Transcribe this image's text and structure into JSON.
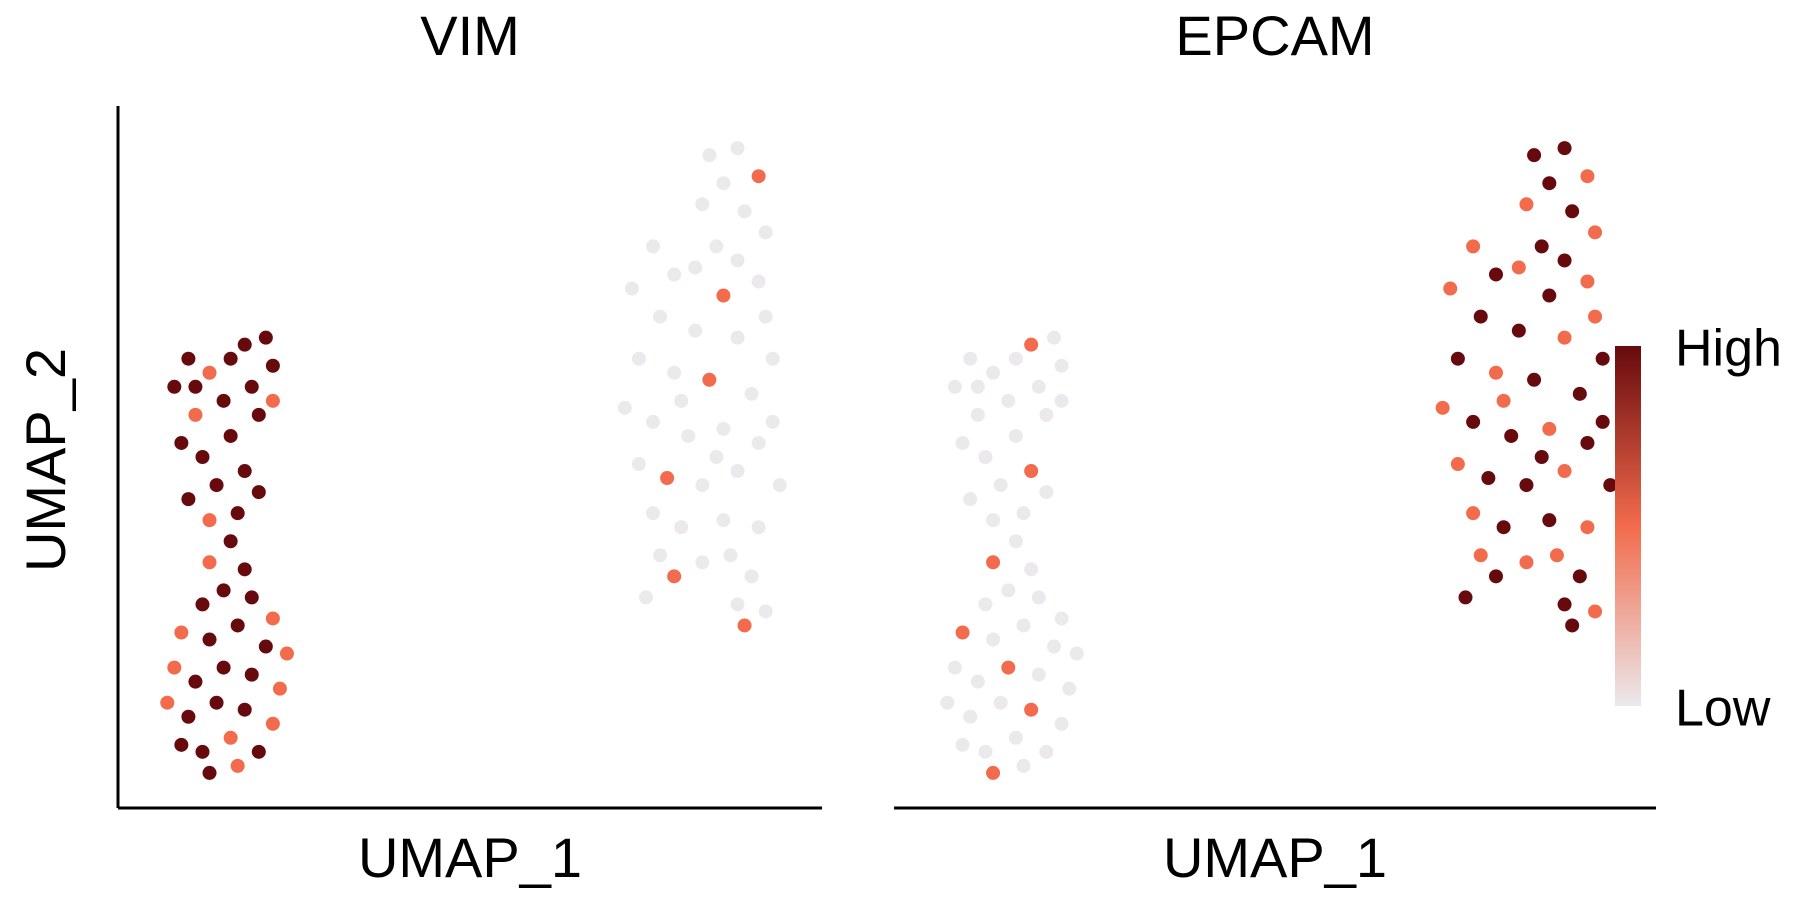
{
  "chart_data": [
    {
      "type": "scatter",
      "title": "VIM",
      "xlabel": "UMAP_1",
      "ylabel": "UMAP_2",
      "xlim": [
        0,
        100
      ],
      "ylim": [
        0,
        100
      ],
      "clim": [
        0,
        2
      ],
      "color_scale": [
        "#ebe9ec",
        "#f26b4c",
        "#670a0d"
      ],
      "x": [
        8,
        10,
        13,
        18,
        21,
        22,
        19,
        15,
        11,
        9,
        12,
        16,
        20,
        22,
        18,
        14,
        10,
        13,
        17,
        20,
        16,
        13,
        18,
        15,
        12,
        19,
        22,
        9,
        13,
        17,
        21,
        24,
        8,
        11,
        15,
        19,
        23,
        7,
        10,
        14,
        18,
        22,
        9,
        12,
        16,
        20,
        13,
        17,
        11,
        16,
        84,
        88,
        91,
        86,
        83,
        89,
        92,
        85,
        82,
        88,
        91,
        76,
        79,
        86,
        92,
        73,
        77,
        82,
        88,
        93,
        74,
        79,
        84,
        90,
        72,
        76,
        81,
        86,
        93,
        74,
        78,
        83,
        88,
        94,
        76,
        80,
        86,
        91,
        77,
        79,
        75,
        87,
        90,
        88,
        92,
        89,
        85,
        80,
        91,
        83
      ],
      "y": [
        60,
        64,
        62,
        66,
        67,
        63,
        60,
        58,
        56,
        52,
        50,
        53,
        56,
        58,
        48,
        46,
        44,
        41,
        42,
        45,
        38,
        35,
        34,
        31,
        29,
        30,
        27,
        25,
        24,
        26,
        23,
        22,
        20,
        18,
        20,
        19,
        17,
        15,
        13,
        15,
        14,
        12,
        9,
        8,
        10,
        8,
        5,
        6,
        60,
        64,
        93,
        94,
        90,
        89,
        86,
        85,
        82,
        80,
        77,
        78,
        75,
        80,
        76,
        73,
        70,
        74,
        70,
        68,
        67,
        64,
        64,
        62,
        61,
        59,
        57,
        55,
        53,
        54,
        55,
        49,
        47,
        46,
        48,
        46,
        42,
        40,
        41,
        40,
        36,
        33,
        30,
        36,
        33,
        29,
        28,
        26,
        50,
        58,
        52,
        35
      ],
      "values": [
        2,
        2,
        1,
        2,
        2,
        2,
        2,
        2,
        1,
        2,
        2,
        2,
        2,
        1,
        2,
        2,
        2,
        1,
        2,
        2,
        2,
        1,
        2,
        2,
        2,
        2,
        1,
        1,
        2,
        2,
        2,
        1,
        1,
        2,
        2,
        2,
        1,
        1,
        2,
        2,
        2,
        1,
        2,
        2,
        1,
        2,
        2,
        1,
        2,
        2,
        0,
        0,
        1,
        0,
        0,
        0,
        0,
        0,
        0,
        0,
        0,
        0,
        0,
        1,
        0,
        0,
        0,
        0,
        0,
        0,
        0,
        0,
        1,
        0,
        0,
        0,
        0,
        0,
        0,
        0,
        1,
        0,
        0,
        0,
        0,
        0,
        0,
        0,
        0,
        1,
        0,
        0,
        0,
        0,
        0,
        1,
        0,
        0,
        0,
        0
      ]
    },
    {
      "type": "scatter",
      "title": "EPCAM",
      "xlabel": "UMAP_1",
      "xlim": [
        0,
        100
      ],
      "ylim": [
        0,
        100
      ],
      "clim": [
        0,
        2
      ],
      "color_scale": [
        "#ebe9ec",
        "#f26b4c",
        "#670a0d"
      ],
      "legend": {
        "labels": [
          "High",
          "Low"
        ]
      },
      "x": [
        8,
        10,
        13,
        18,
        21,
        22,
        19,
        15,
        11,
        9,
        12,
        16,
        20,
        22,
        18,
        14,
        10,
        13,
        17,
        20,
        16,
        13,
        18,
        15,
        12,
        19,
        22,
        9,
        13,
        17,
        21,
        24,
        8,
        11,
        15,
        19,
        23,
        7,
        10,
        14,
        18,
        22,
        9,
        12,
        16,
        20,
        13,
        17,
        11,
        16,
        84,
        88,
        91,
        86,
        83,
        89,
        92,
        85,
        82,
        88,
        91,
        76,
        79,
        86,
        92,
        73,
        77,
        82,
        88,
        93,
        74,
        79,
        84,
        90,
        72,
        76,
        81,
        86,
        93,
        74,
        78,
        83,
        88,
        94,
        76,
        80,
        86,
        91,
        77,
        79,
        75,
        87,
        90,
        88,
        92,
        89,
        85,
        80,
        91,
        83
      ],
      "y": [
        60,
        64,
        62,
        66,
        67,
        63,
        60,
        58,
        56,
        52,
        50,
        53,
        56,
        58,
        48,
        46,
        44,
        41,
        42,
        45,
        38,
        35,
        34,
        31,
        29,
        30,
        27,
        25,
        24,
        26,
        23,
        22,
        20,
        18,
        20,
        19,
        17,
        15,
        13,
        15,
        14,
        12,
        9,
        8,
        10,
        8,
        5,
        6,
        60,
        64,
        93,
        94,
        90,
        89,
        86,
        85,
        82,
        80,
        77,
        78,
        75,
        80,
        76,
        73,
        70,
        74,
        70,
        68,
        67,
        64,
        64,
        62,
        61,
        59,
        57,
        55,
        53,
        54,
        55,
        49,
        47,
        46,
        48,
        46,
        42,
        40,
        41,
        40,
        36,
        33,
        30,
        36,
        33,
        29,
        28,
        26,
        50,
        58,
        52,
        35
      ],
      "values": [
        0,
        0,
        0,
        1,
        0,
        0,
        0,
        0,
        0,
        0,
        0,
        0,
        0,
        0,
        1,
        0,
        0,
        0,
        0,
        0,
        0,
        1,
        0,
        0,
        0,
        0,
        0,
        1,
        0,
        0,
        0,
        0,
        0,
        0,
        1,
        0,
        0,
        0,
        0,
        0,
        1,
        0,
        0,
        0,
        0,
        0,
        1,
        0,
        0,
        0,
        2,
        2,
        1,
        2,
        1,
        2,
        1,
        2,
        1,
        2,
        1,
        1,
        2,
        2,
        1,
        1,
        2,
        2,
        1,
        2,
        2,
        1,
        2,
        2,
        1,
        2,
        2,
        1,
        2,
        1,
        2,
        2,
        1,
        2,
        1,
        2,
        2,
        1,
        1,
        2,
        2,
        1,
        2,
        2,
        1,
        2,
        2,
        1,
        2,
        1
      ]
    }
  ]
}
